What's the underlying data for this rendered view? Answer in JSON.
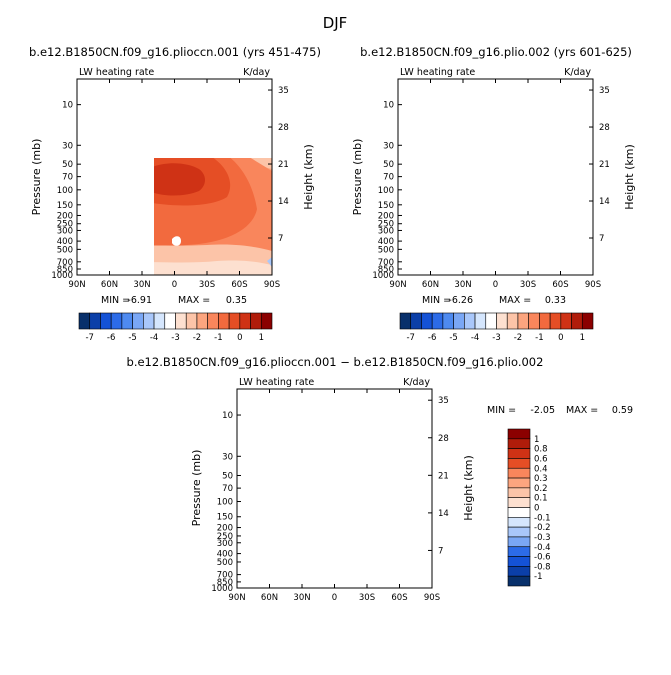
{
  "figure": {
    "title": "DJF",
    "colors": {
      "negative": [
        "#08306b",
        "#0b3fa8",
        "#1452d6",
        "#2c6be8",
        "#4e8af0",
        "#7aa7f5",
        "#a9c7fa",
        "#d5e6fd"
      ],
      "zero": "#ffffff",
      "positive": [
        "#fde0d0",
        "#fcc4a8",
        "#fca57f",
        "#f9865c",
        "#f26a3e",
        "#e54e25",
        "#cf3215",
        "#b01c0a",
        "#8b0000"
      ]
    }
  },
  "chart_data": [
    {
      "type": "heatmap",
      "title": "b.e12.B1850CN.f09_g16.plioccn.001 (yrs 451-475)",
      "left_label": "LW heating rate",
      "right_label": "K/day",
      "xlabel": "",
      "ylabel": "Pressure (mb)",
      "y2label": "Height (km)",
      "xticks": [
        "90N",
        "60N",
        "30N",
        "0",
        "30S",
        "60S",
        "90S"
      ],
      "pressure_ticks": [
        "10",
        "30",
        "50",
        "70",
        "100",
        "150",
        "200",
        "250",
        "300",
        "400",
        "500",
        "700",
        "850",
        "1000"
      ],
      "height_ticks": [
        "35",
        "28",
        "21",
        "14",
        "7"
      ],
      "stats": {
        "min_label": "MIN =",
        "min": "-6.91",
        "max_label": "MAX =",
        "max": "0.35"
      },
      "colorbar": {
        "orientation": "horizontal",
        "labels": [
          "-7",
          "-6",
          "-5",
          "-4",
          "-3",
          "-2",
          "-1",
          "0",
          "1"
        ]
      }
    },
    {
      "type": "heatmap",
      "title": "b.e12.B1850CN.f09_g16.plio.002 (yrs 601-625)",
      "left_label": "LW heating rate",
      "right_label": "K/day",
      "xlabel": "",
      "ylabel": "Pressure (mb)",
      "y2label": "Height (km)",
      "xticks": [
        "90N",
        "60N",
        "30N",
        "0",
        "30S",
        "60S",
        "90S"
      ],
      "pressure_ticks": [
        "10",
        "30",
        "50",
        "70",
        "100",
        "150",
        "200",
        "250",
        "300",
        "400",
        "500",
        "700",
        "850",
        "1000"
      ],
      "height_ticks": [
        "35",
        "28",
        "21",
        "14",
        "7"
      ],
      "stats": {
        "min_label": "MIN =",
        "min": "-6.26",
        "max_label": "MAX =",
        "max": "0.33"
      },
      "colorbar": {
        "orientation": "horizontal",
        "labels": [
          "-7",
          "-6",
          "-5",
          "-4",
          "-3",
          "-2",
          "-1",
          "0",
          "1"
        ]
      }
    },
    {
      "type": "heatmap",
      "title": "b.e12.B1850CN.f09_g16.plioccn.001 − b.e12.B1850CN.f09_g16.plio.002",
      "left_label": "LW heating rate",
      "right_label": "K/day",
      "xlabel": "",
      "ylabel": "Pressure (mb)",
      "y2label": "Height (km)",
      "xticks": [
        "90N",
        "60N",
        "30N",
        "0",
        "30S",
        "60S",
        "90S"
      ],
      "pressure_ticks": [
        "10",
        "30",
        "50",
        "70",
        "100",
        "150",
        "200",
        "250",
        "300",
        "400",
        "500",
        "700",
        "850",
        "1000"
      ],
      "height_ticks": [
        "35",
        "28",
        "21",
        "14",
        "7"
      ],
      "stats": {
        "min_label": "MIN =",
        "min": "-2.05",
        "max_label": "MAX =",
        "max": "0.59"
      },
      "colorbar": {
        "orientation": "vertical",
        "labels": [
          "1",
          "0.8",
          "0.6",
          "0.4",
          "0.3",
          "0.2",
          "0.1",
          "0",
          "-0.1",
          "-0.2",
          "-0.3",
          "-0.4",
          "-0.6",
          "-0.8",
          "-1"
        ]
      }
    }
  ]
}
